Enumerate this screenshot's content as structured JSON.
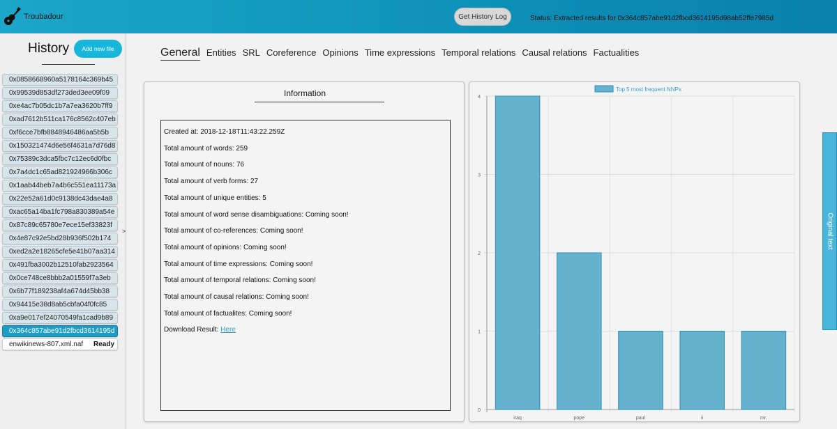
{
  "app": {
    "brand": "Troubadour",
    "logo_icon": "guitar-icon"
  },
  "topbar": {
    "history_log_label": "Get History Log",
    "status": "Status: Extracted results for 0x364c857abe91d2fbcd3614195d98ab52ffe7985d"
  },
  "sidebar": {
    "title": "History",
    "add_file_label": "Add new file",
    "collapse_label": ">",
    "items": [
      "0x0858668960a5178164c369b45",
      "0x99539d853df273ded3ee09f09",
      "0xe4ac7b05dc1b7a7ea3620b7ff9",
      "0xad7612b511ca176c8562c407eb",
      "0xf6cce7bfb8848946486aa5b5b",
      "0x150321474d6e56f4631a7d76d8",
      "0x75389c3dca5fbc7c12ec6d0fbc",
      "0x7a4dc1c65ad821924966b306c",
      "0x1aab44beb7a4b6c551ea11173a",
      "0x22e52a61d0c9138dc43dae4a8",
      "0xac65a14ba1fc798a830389a54e",
      "0x87c89c65780e7ece15ef33823f",
      "0x4e87c92e5bd28b936f502b174",
      "0xed2a2e18265cfe5e41b07aa314",
      "0x491fba3002b12510fab2923564",
      "0x0ce748ce8bbb2a01559f7a3eb",
      "0x6b77f189238af4a674d45bb38",
      "0x94415e38d8ab5cbfa04f0fc85",
      "0xa9e017ef24070549fa1cad9b89",
      "0x364c857abe91d2fbcd3614195d"
    ],
    "selected_index": 19,
    "upload": {
      "filename": "enwikinews-807.xml.naf",
      "state": "Ready"
    }
  },
  "tabs": [
    {
      "label": "General",
      "active": true
    },
    {
      "label": "Entities"
    },
    {
      "label": "SRL"
    },
    {
      "label": "Coreference"
    },
    {
      "label": "Opinions"
    },
    {
      "label": "Time expressions"
    },
    {
      "label": "Temporal relations"
    },
    {
      "label": "Causal relations"
    },
    {
      "label": "Factualities"
    }
  ],
  "info": {
    "title": "Information",
    "lines": [
      "Created at: 2018-12-18T11:43:22.259Z",
      "Total amount of words: 259",
      "Total amount of nouns: 76",
      "Total amount of verb forms: 27",
      "Total amount of unique entities: 5",
      "Total amount of word sense disambiguations: Coming soon!",
      "Total amount of co-references: Coming soon!",
      "Total amount of opinions: Coming soon!",
      "Total amount of time expressions: Coming soon!",
      "Total amount of temporal relations: Coming soon!",
      "Total amount of causal relations: Coming soon!",
      "Total amount of factualites: Coming soon!"
    ],
    "download_label": "Download Result:",
    "download_link": "Here"
  },
  "side_tab": {
    "label": "Original text"
  },
  "colors": {
    "accent": "#19b6dc",
    "bar_fill": "#64b2cd",
    "bar_stroke": "#2a8fb4",
    "selected": "#1d9cc4"
  },
  "chart_data": {
    "type": "bar",
    "categories": [
      "iraq",
      "pope",
      "paul",
      "ii",
      "mr."
    ],
    "series": [
      {
        "name": "Top 5 most frequent NNPs",
        "values": [
          4,
          2,
          1,
          1,
          1
        ]
      }
    ],
    "ylim": [
      0,
      4
    ],
    "yticks": [
      0,
      1,
      2,
      3,
      4
    ],
    "grid": true,
    "legend": "top"
  }
}
